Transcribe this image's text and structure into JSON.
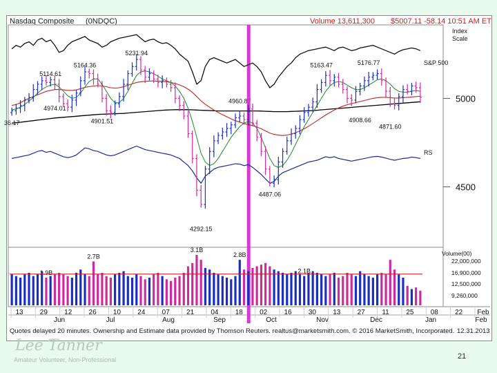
{
  "header": {
    "symbol": "Nasdaq Composite",
    "ticker": "(0NDQC)",
    "volume": "Volume 13,611,300",
    "quote": "$5007.11 -58.14 10:51 AM ET"
  },
  "scale": {
    "line1": "Index",
    "line2": "Scale"
  },
  "footer": {
    "note": "Quotes delayed 20 minutes.  Ownership and Estimate data provided by Thomson Reuters.  realtus@marketsmith.com.          © 2016 MarketSmith, Incorporated.",
    "date": "12.31.2013"
  },
  "slide": {
    "signature": "Lee Tanner",
    "subtitle": "Amateur Volunteer, Non-Professional",
    "page_number": "21"
  },
  "colors": {
    "up": "#1a2ec0",
    "down": "#cc2a9e",
    "highlight": "#d63ad0",
    "ma50": "#c62020",
    "ma10": "#1c8a2a",
    "ma200": "#000000",
    "rs": "#1c2a9a"
  },
  "chart_data": {
    "type": "candlestick",
    "title": "Nasdaq Composite",
    "price_axis": {
      "ticks": [
        5000,
        4500
      ],
      "range": [
        4150,
        5400
      ]
    },
    "volume_axis": {
      "ticks": [
        "22,000,000",
        "16,900,000",
        "12,500,000",
        "9,260,000"
      ],
      "label": "Volume(00)"
    },
    "x_labels": [
      "13",
      "29",
      "12",
      "26",
      "10",
      "24",
      "07",
      "21",
      "04",
      "18",
      "02",
      "16",
      "30",
      "13",
      "27",
      "11",
      "25",
      "08",
      "22",
      "Feb"
    ],
    "month_labels": [
      "Jun",
      "Jul",
      "Aug",
      "Sep",
      "Oct",
      "Nov",
      "Dec",
      "Jan",
      "Feb"
    ],
    "price_annotations": [
      {
        "label": "5114.61",
        "value": 5114.61
      },
      {
        "label": "5164.36",
        "value": 5164.36
      },
      {
        "label": "5231.94",
        "value": 5231.94
      },
      {
        "label": "4974.01",
        "value": 4974.01
      },
      {
        "label": "4901.51",
        "value": 4901.51
      },
      {
        "label": "4960.87",
        "value": 4960.87
      },
      {
        "label": "5163.47",
        "value": 5163.47
      },
      {
        "label": "5176.77",
        "value": 5176.77
      },
      {
        "label": "4908.66",
        "value": 4908.66
      },
      {
        "label": "4871.60",
        "value": 4871.6
      },
      {
        "label": "4292.15",
        "value": 4292.15
      },
      {
        "label": "4487.06",
        "value": 4487.06
      },
      {
        "label": "36.17",
        "value": null
      }
    ],
    "volume_annotations": [
      "1.9B",
      "2.7B",
      "3.1B",
      "2.8B",
      "2.1B"
    ],
    "series_labels": [
      "S&P 500",
      "RS"
    ],
    "closes": [
      4930,
      4945,
      4960,
      4990,
      5005,
      5050,
      5080,
      5100,
      5090,
      5105,
      5080,
      5010,
      4970,
      4950,
      4990,
      5030,
      5100,
      5150,
      5140,
      5110,
      5080,
      5000,
      4930,
      4920,
      4970,
      5010,
      5080,
      5140,
      5180,
      5220,
      5160,
      5120,
      5140,
      5110,
      5090,
      5100,
      5080,
      5060,
      5000,
      4960,
      4900,
      4800,
      4660,
      4480,
      4400,
      4600,
      4700,
      4760,
      4790,
      4810,
      4830,
      4850,
      4890,
      4900,
      4880,
      4940,
      4860,
      4780,
      4700,
      4600,
      4520,
      4540,
      4640,
      4700,
      4760,
      4800,
      4830,
      4880,
      4920,
      4950,
      4980,
      5050,
      5090,
      5130,
      5100,
      5120,
      5080,
      5050,
      5000,
      4990,
      5040,
      5070,
      5100,
      5120,
      5130,
      5140,
      5100,
      5040,
      4970,
      4960,
      5010,
      5050,
      5040,
      5070,
      5060,
      5007.11
    ],
    "ma50": [
      4960,
      4965,
      4975,
      4990,
      5000,
      5010,
      5020,
      5030,
      5040,
      5045,
      5050,
      5050,
      5048,
      5045,
      5045,
      5048,
      5055,
      5062,
      5066,
      5070,
      5072,
      5070,
      5066,
      5060,
      5058,
      5060,
      5066,
      5074,
      5082,
      5090,
      5094,
      5096,
      5098,
      5098,
      5097,
      5096,
      5094,
      5090,
      5084,
      5076,
      5066,
      5052,
      5034,
      5010,
      4986,
      4966,
      4950,
      4934,
      4920,
      4908,
      4896,
      4884,
      4874,
      4866,
      4858,
      4852,
      4846,
      4838,
      4828,
      4816,
      4804,
      4796,
      4792,
      4790,
      4792,
      4798,
      4806,
      4816,
      4828,
      4842,
      4858,
      4874,
      4890,
      4906,
      4920,
      4934,
      4946,
      4956,
      4964,
      4970,
      4976,
      4982,
      4988,
      4994,
      5000,
      5004,
      5006,
      5006,
      5004,
      5002,
      5002,
      5004,
      5006,
      5008,
      5010,
      5012
    ],
    "ma10": [
      4935,
      4940,
      4950,
      4965,
      4985,
      5005,
      5030,
      5050,
      5065,
      5075,
      5080,
      5065,
      5040,
      5015,
      5000,
      5005,
      5030,
      5065,
      5095,
      5110,
      5110,
      5080,
      5040,
      5000,
      4975,
      4975,
      5000,
      5040,
      5085,
      5130,
      5150,
      5155,
      5150,
      5140,
      5125,
      5110,
      5100,
      5090,
      5070,
      5040,
      5000,
      4945,
      4870,
      4780,
      4690,
      4640,
      4620,
      4630,
      4660,
      4700,
      4740,
      4780,
      4810,
      4840,
      4860,
      4870,
      4860,
      4830,
      4780,
      4720,
      4660,
      4620,
      4610,
      4620,
      4650,
      4690,
      4740,
      4790,
      4840,
      4880,
      4920,
      4960,
      5000,
      5040,
      5070,
      5090,
      5095,
      5090,
      5075,
      5060,
      5050,
      5050,
      5060,
      5075,
      5090,
      5105,
      5110,
      5100,
      5080,
      5055,
      5040,
      5035,
      5035,
      5040,
      5045,
      5040
    ],
    "ma200": [
      4860,
      4862,
      4865,
      4868,
      4871,
      4874,
      4877,
      4880,
      4883,
      4886,
      4889,
      4891,
      4893,
      4895,
      4897,
      4899,
      4901,
      4903,
      4905,
      4907,
      4909,
      4910,
      4911,
      4912,
      4913,
      4914,
      4915,
      4917,
      4919,
      4921,
      4923,
      4925,
      4927,
      4929,
      4931,
      4933,
      4934,
      4935,
      4936,
      4936,
      4936,
      4936,
      4935,
      4934,
      4933,
      4932,
      4931,
      4930,
      4929,
      4929,
      4929,
      4929,
      4929,
      4929,
      4929,
      4929,
      4929,
      4929,
      4928,
      4927,
      4926,
      4925,
      4925,
      4925,
      4925,
      4926,
      4927,
      4928,
      4929,
      4930,
      4931,
      4933,
      4935,
      4937,
      4939,
      4941,
      4943,
      4945,
      4947,
      4949,
      4951,
      4953,
      4955,
      4957,
      4959,
      4961,
      4963,
      4965,
      4967,
      4969,
      4971,
      4973,
      4975,
      4977,
      4979,
      4981
    ],
    "sp500": [
      5280,
      5300,
      5290,
      5310,
      5320,
      5300,
      5330,
      5340,
      5320,
      5330,
      5300,
      5260,
      5270,
      5300,
      5320,
      5330,
      5340,
      5350,
      5330,
      5320,
      5310,
      5290,
      5300,
      5320,
      5330,
      5340,
      5345,
      5350,
      5355,
      5360,
      5340,
      5320,
      5330,
      5335,
      5320,
      5310,
      5315,
      5300,
      5280,
      5250,
      5230,
      5210,
      5150,
      5080,
      5100,
      5180,
      5220,
      5230,
      5220,
      5210,
      5200,
      5210,
      5220,
      5200,
      5180,
      5190,
      5200,
      5180,
      5150,
      5100,
      5060,
      5080,
      5120,
      5150,
      5180,
      5200,
      5230,
      5250,
      5260,
      5270,
      5275,
      5280,
      5285,
      5290,
      5280,
      5270,
      5285,
      5290,
      5280,
      5270,
      5275,
      5285,
      5290,
      5295,
      5300,
      5290,
      5280,
      5270,
      5260,
      5250,
      5265,
      5275,
      5280,
      5285,
      5280,
      5270
    ],
    "rs": [
      4660,
      4665,
      4670,
      4675,
      4680,
      4690,
      4700,
      4705,
      4695,
      4700,
      4690,
      4680,
      4670,
      4665,
      4670,
      4680,
      4700,
      4720,
      4715,
      4705,
      4700,
      4690,
      4680,
      4675,
      4680,
      4690,
      4700,
      4710,
      4720,
      4730,
      4720,
      4710,
      4705,
      4700,
      4695,
      4690,
      4685,
      4680,
      4670,
      4660,
      4640,
      4620,
      4590,
      4550,
      4520,
      4560,
      4580,
      4600,
      4610,
      4615,
      4620,
      4625,
      4630,
      4628,
      4620,
      4625,
      4610,
      4590,
      4570,
      4545,
      4520,
      4530,
      4560,
      4580,
      4590,
      4600,
      4610,
      4620,
      4630,
      4640,
      4645,
      4650,
      4660,
      4670,
      4665,
      4670,
      4660,
      4655,
      4650,
      4645,
      4650,
      4655,
      4660,
      4665,
      4670,
      4672,
      4668,
      4662,
      4655,
      4650,
      4655,
      4660,
      4662,
      4668,
      4665,
      4660
    ],
    "volumes": [
      1.9,
      1.8,
      1.7,
      1.9,
      2.0,
      1.8,
      1.9,
      2.1,
      1.7,
      1.8,
      1.9,
      2.0,
      1.9,
      1.8,
      1.7,
      2.0,
      2.2,
      1.9,
      1.8,
      2.7,
      1.9,
      2.0,
      1.8,
      1.7,
      1.9,
      2.0,
      2.1,
      1.8,
      1.7,
      1.9,
      1.8,
      1.6,
      1.7,
      1.9,
      2.0,
      1.8,
      1.6,
      1.5,
      1.7,
      1.8,
      2.0,
      2.4,
      2.6,
      3.1,
      2.8,
      2.3,
      2.2,
      2.0,
      1.9,
      1.8,
      1.7,
      1.6,
      1.8,
      2.8,
      2.2,
      2.1,
      2.3,
      2.4,
      2.5,
      2.6,
      2.4,
      2.2,
      2.1,
      2.0,
      1.9,
      2.0,
      2.1,
      1.9,
      1.8,
      2.0,
      2.1,
      2.0,
      1.9,
      1.8,
      1.9,
      2.0,
      1.7,
      1.8,
      2.0,
      1.9,
      1.8,
      2.1,
      1.9,
      1.8,
      1.7,
      1.9,
      2.0,
      1.9,
      2.8,
      2.2,
      1.9,
      1.7,
      1.2,
      1.0,
      1.1,
      0.9
    ],
    "avg_volume": 1.92,
    "highlight_index": 55
  }
}
